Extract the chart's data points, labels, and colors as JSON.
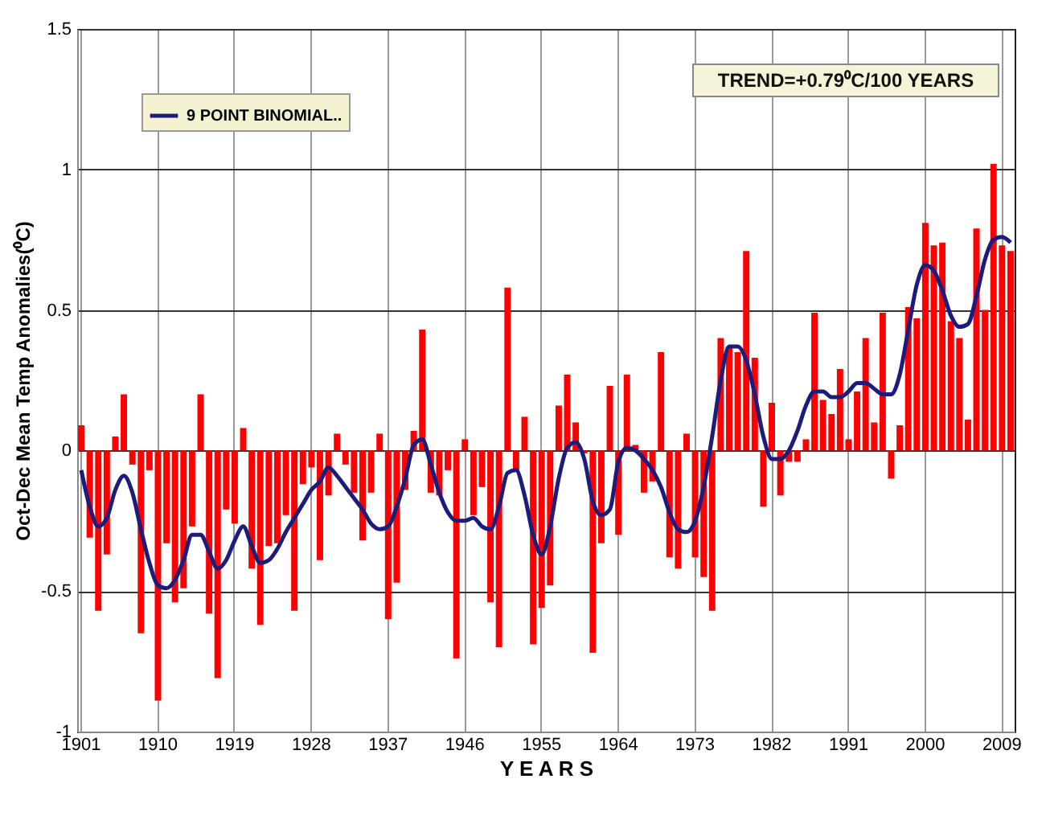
{
  "chart_data": {
    "type": "bar",
    "xlabel": "Y E A R S",
    "ylabel": "Oct-Dec Mean Temp Anomalies(⁰C)",
    "annotations": [
      "TREND=+0.79⁰C/100 YEARS"
    ],
    "categories": [
      "1901",
      null,
      null,
      null,
      null,
      null,
      null,
      null,
      null,
      "1910",
      null,
      null,
      null,
      null,
      null,
      null,
      null,
      null,
      "1919",
      null,
      null,
      null,
      null,
      null,
      null,
      null,
      null,
      "1928",
      null,
      null,
      null,
      null,
      null,
      null,
      null,
      null,
      "1937",
      null,
      null,
      null,
      null,
      null,
      null,
      null,
      null,
      "1946",
      null,
      null,
      null,
      null,
      null,
      null,
      null,
      null,
      "1955",
      null,
      null,
      null,
      null,
      null,
      null,
      null,
      null,
      "1964",
      null,
      null,
      null,
      null,
      null,
      null,
      null,
      null,
      "1973",
      null,
      null,
      null,
      null,
      null,
      null,
      null,
      null,
      "1982",
      null,
      null,
      null,
      null,
      null,
      null,
      null,
      null,
      "1991",
      null,
      null,
      null,
      null,
      null,
      null,
      null,
      null,
      "2000",
      null,
      null,
      null,
      null,
      null,
      null,
      null,
      null,
      "2009",
      null
    ],
    "series": [
      {
        "color": "#ff0000",
        "values": [
          0.09,
          -0.31,
          -0.57,
          -0.37,
          0.05,
          0.2,
          -0.05,
          -0.65,
          -0.07,
          -0.89,
          -0.33,
          -0.54,
          -0.49,
          -0.27,
          0.2,
          -0.58,
          -0.81,
          -0.21,
          -0.26,
          0.08,
          -0.42,
          -0.62,
          -0.34,
          -0.33,
          -0.23,
          -0.57,
          -0.12,
          -0.06,
          -0.39,
          -0.16,
          0.06,
          -0.05,
          -0.15,
          -0.32,
          -0.15,
          0.06,
          -0.6,
          -0.47,
          -0.14,
          0.07,
          0.43,
          -0.15,
          -0.16,
          -0.07,
          -0.74,
          0.04,
          -0.23,
          -0.13,
          -0.54,
          -0.7,
          0.58,
          -0.07,
          0.12,
          -0.69,
          -0.56,
          -0.48,
          0.16,
          0.27,
          0.1,
          -0.01,
          -0.72,
          -0.33,
          0.23,
          -0.3,
          0.27,
          0.02,
          -0.15,
          -0.11,
          0.35,
          -0.38,
          -0.42,
          0.06,
          -0.38,
          -0.45,
          -0.57,
          0.4,
          0.37,
          0.35,
          0.71,
          0.33,
          -0.2,
          0.17,
          -0.16,
          -0.04,
          -0.04,
          0.04,
          0.49,
          0.18,
          0.13,
          0.29,
          0.04,
          0.21,
          0.4,
          0.1,
          0.49,
          -0.1,
          0.09,
          0.51,
          0.47,
          0.81,
          0.73,
          0.74,
          0.46,
          0.4,
          0.11,
          0.79,
          0.5,
          1.02,
          0.73,
          0.71
        ]
      },
      {
        "type": "line",
        "name": "9 POINT BINOMIAL..",
        "color": "#1c1c7c",
        "values": [
          -0.07,
          -0.2,
          -0.27,
          -0.24,
          -0.14,
          -0.09,
          -0.15,
          -0.28,
          -0.4,
          -0.48,
          -0.49,
          -0.46,
          -0.39,
          -0.3,
          -0.3,
          -0.36,
          -0.42,
          -0.39,
          -0.32,
          -0.27,
          -0.34,
          -0.4,
          -0.39,
          -0.35,
          -0.29,
          -0.24,
          -0.19,
          -0.14,
          -0.11,
          -0.06,
          -0.09,
          -0.13,
          -0.17,
          -0.21,
          -0.26,
          -0.28,
          -0.27,
          -0.2,
          -0.1,
          0.02,
          0.04,
          -0.05,
          -0.15,
          -0.22,
          -0.25,
          -0.25,
          -0.24,
          -0.27,
          -0.28,
          -0.2,
          -0.08,
          -0.07,
          -0.16,
          -0.3,
          -0.37,
          -0.27,
          -0.1,
          0.01,
          0.03,
          -0.03,
          -0.18,
          -0.23,
          -0.21,
          -0.04,
          0.01,
          0.0,
          -0.03,
          -0.07,
          -0.13,
          -0.22,
          -0.28,
          -0.29,
          -0.25,
          -0.13,
          0.05,
          0.25,
          0.37,
          0.37,
          0.32,
          0.2,
          0.05,
          -0.03,
          -0.03,
          0.0,
          0.07,
          0.16,
          0.21,
          0.21,
          0.19,
          0.19,
          0.21,
          0.24,
          0.24,
          0.22,
          0.2,
          0.2,
          0.27,
          0.43,
          0.59,
          0.66,
          0.64,
          0.57,
          0.48,
          0.44,
          0.45,
          0.55,
          0.68,
          0.75,
          0.76,
          0.74
        ]
      }
    ],
    "ylim": [
      -1,
      1.5
    ],
    "yticks": [
      -1,
      -0.5,
      0,
      0.5,
      1,
      1.5
    ],
    "grid": true,
    "legend": "top left"
  }
}
